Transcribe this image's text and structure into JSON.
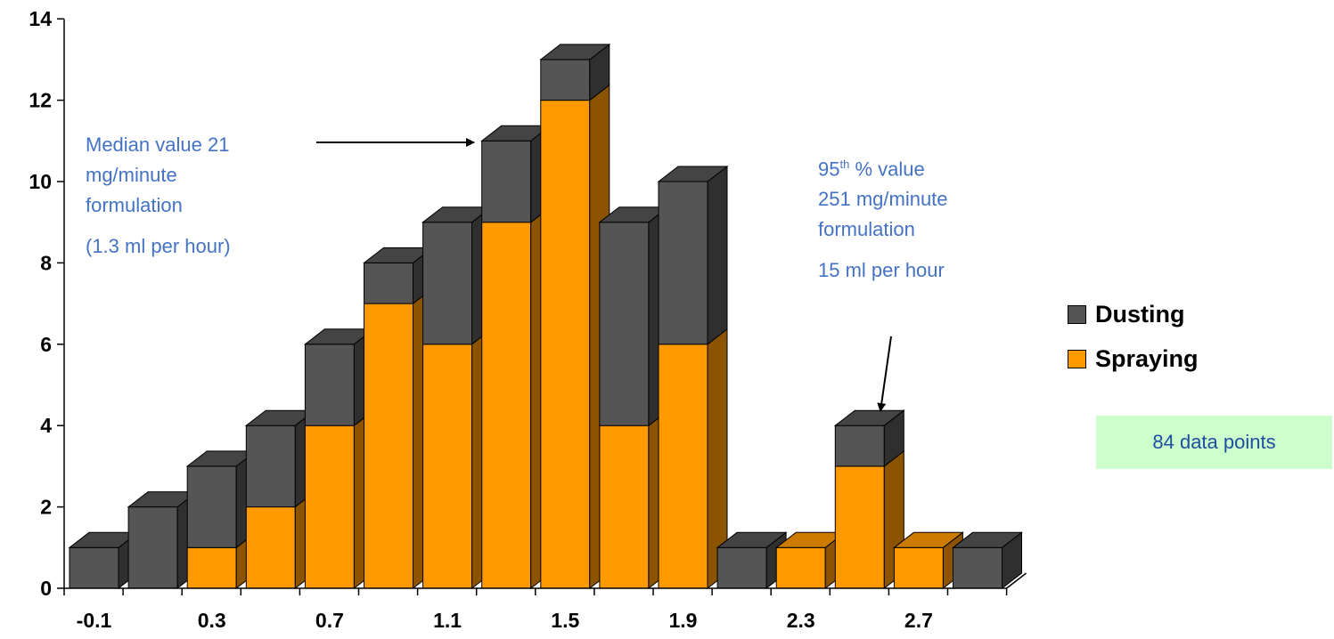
{
  "chart_data": {
    "type": "bar",
    "stacked": true,
    "style": "3d",
    "categories": [
      "-0.1",
      "0.1",
      "0.3",
      "0.5",
      "0.7",
      "0.9",
      "1.1",
      "1.3",
      "1.5",
      "1.7",
      "1.9",
      "2.1",
      "2.3",
      "2.5",
      "2.7",
      "2.9"
    ],
    "x_tick_labels": [
      "-0.1",
      "0.3",
      "0.7",
      "1.1",
      "1.5",
      "1.9",
      "2.3",
      "2.7"
    ],
    "series": [
      {
        "name": "Spraying",
        "color": "#FF9900",
        "values": [
          0,
          0,
          1,
          2,
          4,
          7,
          6,
          9,
          12,
          4,
          6,
          0,
          1,
          3,
          1,
          0
        ]
      },
      {
        "name": "Dusting",
        "color": "#555555",
        "values": [
          1,
          2,
          2,
          2,
          2,
          1,
          3,
          2,
          1,
          5,
          4,
          1,
          0,
          1,
          0,
          1
        ]
      }
    ],
    "ylim": [
      0,
      14
    ],
    "y_ticks": [
      0,
      2,
      4,
      6,
      8,
      10,
      12,
      14
    ],
    "legend_position": "right",
    "grid": false
  },
  "legend": [
    {
      "label": "Dusting",
      "color": "#555555"
    },
    {
      "label": "Spraying",
      "color": "#FF9900"
    }
  ],
  "annotations": {
    "median": {
      "line1": "Median value 21",
      "line2": "mg/minute",
      "line3": "formulation",
      "line4": "(1.3 ml per hour)"
    },
    "p95": {
      "line1_num": "95",
      "line1_sup": "th",
      "line1_rest": " % value",
      "line2": "251 mg/minute",
      "line3": "formulation",
      "line4": "15 ml per hour"
    },
    "data_points": "84 data points"
  }
}
